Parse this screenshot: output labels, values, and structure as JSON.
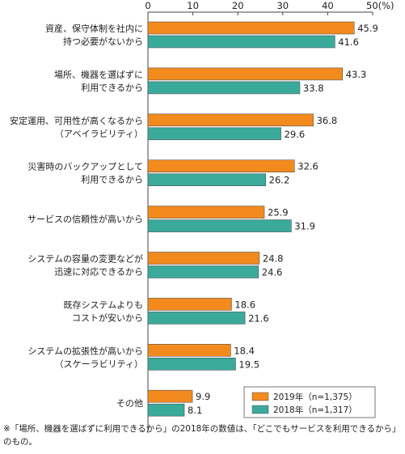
{
  "chart_data": {
    "type": "bar",
    "orientation": "horizontal",
    "categories": [
      [
        "資産、保守体制を社内に",
        "持つ必要がないから"
      ],
      [
        "場所、機器を選ばずに",
        "利用できるから"
      ],
      [
        "安定運用、可用性が高くなるから",
        "（アベイラビリティ）"
      ],
      [
        "災害時のバックアップとして",
        "利用できるから"
      ],
      [
        "サービスの信頼性が高いから"
      ],
      [
        "システムの容量の変更などが",
        "迅速に対応できるから"
      ],
      [
        "既存システムよりも",
        "コストが安いから"
      ],
      [
        "システムの拡張性が高いから",
        "（スケーラビリティ）"
      ],
      [
        "その他"
      ]
    ],
    "series": [
      {
        "name": "2019年（n=1,375）",
        "color": "#f28a1e",
        "values": [
          45.9,
          43.3,
          36.8,
          32.6,
          25.9,
          24.8,
          18.6,
          18.4,
          9.9
        ]
      },
      {
        "name": "2018年（n=1,317）",
        "color": "#3aaa9b",
        "values": [
          41.6,
          33.8,
          29.6,
          26.2,
          31.9,
          24.6,
          21.6,
          19.5,
          8.1
        ]
      }
    ],
    "xlim": [
      0,
      50
    ],
    "xticks": [
      "0",
      "10",
      "20",
      "30",
      "40",
      "50(%)"
    ],
    "axis_position": "top",
    "grid": false,
    "legend_position": "bottom-right"
  },
  "footnote": "※「場所、機器を選ばずに利用できるから」の2018年の数値は、「どこでもサービスを利用できるから」のもの。"
}
